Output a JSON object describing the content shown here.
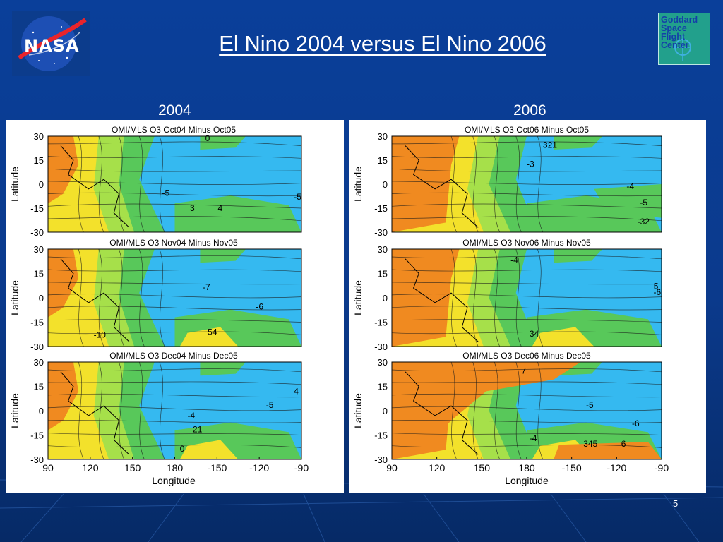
{
  "slide": {
    "title": "El Nino 2004 versus El Nino 2006",
    "page_number": "5",
    "logos": {
      "left": "NASA",
      "right": "Goddard Space Flight Center"
    },
    "colors": {
      "background": "#0b3a8c",
      "text": "#ffffff",
      "map_low": "#32b8f0",
      "map_high": "#f08a20"
    }
  },
  "panels": [
    {
      "year": "2004",
      "xlabel": "Longitude",
      "ylabel": "Latitude",
      "maps": [
        {
          "title": "OMI/MLS O3     Oct04 Minus Oct05",
          "contour_labels": [
            "0",
            "-5",
            "3",
            "4",
            "-5"
          ]
        },
        {
          "title": "OMI/MLS O3     Nov04 Minus Nov05",
          "contour_labels": [
            "-7",
            "-6",
            "54",
            "-10"
          ]
        },
        {
          "title": "OMI/MLS O3     Dec04 Minus Dec05",
          "contour_labels": [
            "-5",
            "-4",
            "0",
            "-21",
            "4"
          ]
        }
      ]
    },
    {
      "year": "2006",
      "xlabel": "Longitude",
      "ylabel": "Latitude",
      "maps": [
        {
          "title": "OMI/MLS O3     Oct06 Minus Oct05",
          "contour_labels": [
            "321",
            "-3",
            "-4",
            "-32",
            "-5"
          ]
        },
        {
          "title": "OMI/MLS O3     Nov06 Minus Nov05",
          "contour_labels": [
            "-5",
            "-6",
            "34",
            "-4"
          ]
        },
        {
          "title": "OMI/MLS O3     Dec06 Minus Dec05",
          "contour_labels": [
            "7",
            "-5",
            "-6",
            "-4",
            "345",
            "6"
          ]
        }
      ]
    }
  ],
  "axes": {
    "lat_ticks": [
      "30",
      "15",
      "0",
      "-15",
      "-30"
    ],
    "lon_ticks": [
      "90",
      "120",
      "150",
      "180",
      "-150",
      "-120",
      "-90"
    ]
  }
}
